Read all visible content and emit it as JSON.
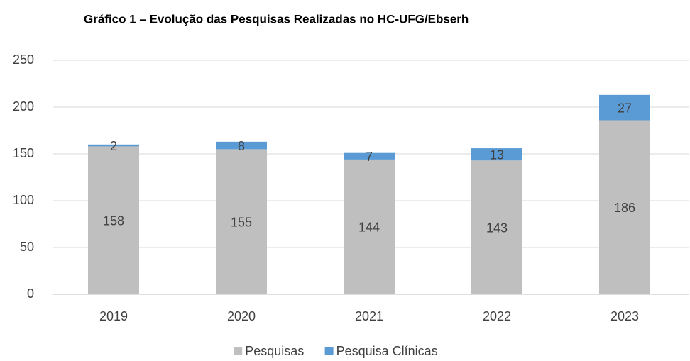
{
  "chart_data": {
    "type": "stacked_bar",
    "title": "Gráfico 1 – Evolução das Pesquisas Realizadas no HC-UFG/Ebserh",
    "categories": [
      "2019",
      "2020",
      "2021",
      "2022",
      "2023"
    ],
    "series": [
      {
        "name": "Pesquisas",
        "color": "#bfbfbf",
        "values": [
          158,
          155,
          144,
          143,
          186
        ]
      },
      {
        "name": "Pesquisa Clínicas",
        "color": "#5b9bd5",
        "values": [
          2,
          8,
          7,
          13,
          27
        ]
      }
    ],
    "ylim": [
      0,
      250
    ],
    "yticks": [
      0,
      50,
      100,
      150,
      200,
      250
    ],
    "grid": true,
    "legend": "bottom"
  }
}
